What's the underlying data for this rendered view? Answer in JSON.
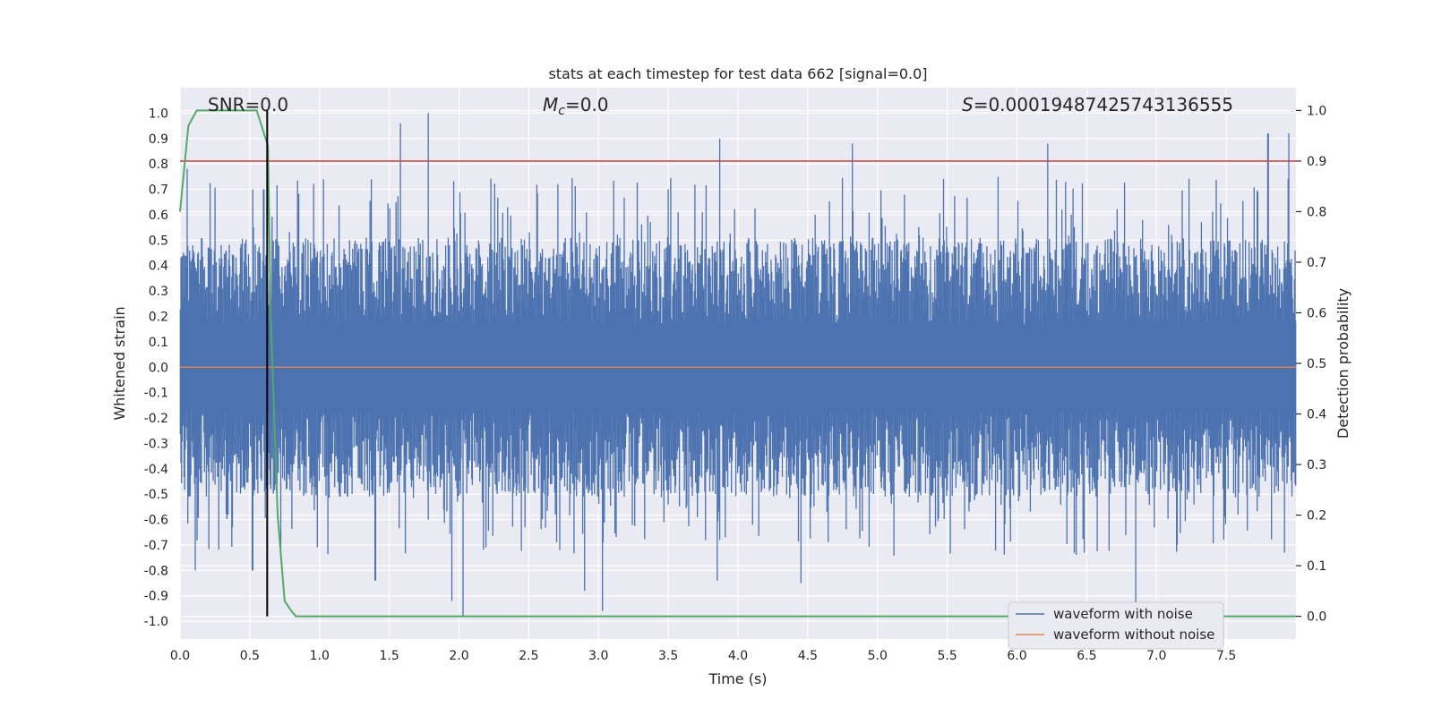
{
  "chart_data": {
    "type": "line",
    "title": "stats at each timestep for test data 662 [signal=0.0]",
    "xlabel": "Time (s)",
    "ylabel": "Whitened strain",
    "ylabel_right": "Detection probability",
    "xlim": [
      0.0,
      8.0
    ],
    "ylim": [
      -1.07,
      1.1
    ],
    "ylim_right": [
      -0.045,
      1.045
    ],
    "x_ticks": [
      "0.0",
      "0.5",
      "1.0",
      "1.5",
      "2.0",
      "2.5",
      "3.0",
      "3.5",
      "4.0",
      "4.5",
      "5.0",
      "5.5",
      "6.0",
      "6.5",
      "7.0",
      "7.5"
    ],
    "y_ticks": [
      "1.0",
      "0.9",
      "0.8",
      "0.7",
      "0.6",
      "0.5",
      "0.4",
      "0.3",
      "0.2",
      "0.1",
      "0.0",
      "-0.1",
      "-0.2",
      "-0.3",
      "-0.4",
      "-0.5",
      "-0.6",
      "-0.7",
      "-0.8",
      "-0.9",
      "-1.0"
    ],
    "y_ticks_right": [
      "1.0",
      "0.9",
      "0.8",
      "0.7",
      "0.6",
      "0.5",
      "0.4",
      "0.3",
      "0.2",
      "0.1",
      "0.0"
    ],
    "annotations": {
      "snr": "SNR=0.0",
      "mc_symbol": "M",
      "mc_sub": "c",
      "mc_value": "=0.0",
      "s_symbol": "S",
      "s_value": "=0.00019487425743136555"
    },
    "threshold_right": 0.9,
    "marker_time": 0.625,
    "noise_envelope": {
      "typical_max": 0.3,
      "typical_min": -0.3,
      "peaks_positive": [
        [
          0.05,
          0.78
        ],
        [
          0.6,
          0.7
        ],
        [
          1.58,
          0.96
        ],
        [
          1.78,
          1.0
        ],
        [
          3.87,
          0.9
        ],
        [
          4.82,
          0.88
        ],
        [
          6.22,
          0.88
        ],
        [
          7.8,
          0.92
        ],
        [
          7.95,
          0.92
        ]
      ],
      "peaks_negative": [
        [
          0.11,
          -0.8
        ],
        [
          0.52,
          -0.8
        ],
        [
          1.4,
          -0.84
        ],
        [
          1.95,
          -0.92
        ],
        [
          2.03,
          -0.98
        ],
        [
          2.9,
          -0.88
        ],
        [
          3.03,
          -0.96
        ],
        [
          3.85,
          -0.84
        ],
        [
          4.45,
          -0.85
        ],
        [
          6.85,
          -0.93
        ]
      ]
    },
    "series": [
      {
        "name": "waveform with noise",
        "color": "#4c72b0",
        "axis": "left"
      },
      {
        "name": "waveform without noise",
        "color": "#dd8452",
        "axis": "left",
        "x": [
          0.0,
          8.0
        ],
        "y": [
          0.0,
          0.0
        ]
      },
      {
        "name": "detection probability",
        "color": "#55a868",
        "axis": "right",
        "x": [
          0.0,
          0.06,
          0.12,
          0.25,
          0.4,
          0.55,
          0.63,
          0.65,
          0.7,
          0.75,
          0.8,
          0.83,
          1.0,
          2.0,
          4.0,
          6.0,
          8.0
        ],
        "y": [
          0.8,
          0.97,
          1.0,
          1.0,
          1.0,
          1.0,
          0.93,
          0.6,
          0.2,
          0.03,
          0.01,
          0.0,
          0.0,
          0.0,
          0.0,
          0.0,
          0.0
        ]
      }
    ],
    "legend": [
      "waveform with noise",
      "waveform without noise"
    ],
    "legend_position": "lower-right"
  }
}
